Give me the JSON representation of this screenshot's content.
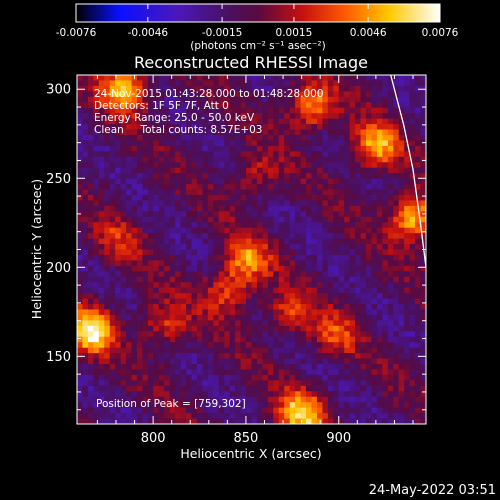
{
  "colorbar": {
    "ticks": [
      "-0.0076",
      "-0.0046",
      "-0.0015",
      "0.0015",
      "0.0046",
      "0.0076"
    ],
    "units": "(photons cm⁻² s⁻¹ asec⁻²)",
    "range": [
      -0.0076,
      0.0076
    ]
  },
  "chart_data": {
    "type": "heatmap",
    "title": "Reconstructed RHESSI Image",
    "xlabel": "Heliocentric X (arcsec)",
    "ylabel": "Heliocentric Y (arcsec)",
    "xlim": [
      759,
      947
    ],
    "ylim": [
      112,
      308
    ],
    "x_ticks": [
      800,
      850,
      900
    ],
    "y_ticks": [
      150,
      200,
      250,
      300
    ],
    "x_tick_labels": [
      "800",
      "850",
      "900"
    ],
    "y_tick_labels": [
      "150",
      "200",
      "250",
      "300"
    ],
    "colormap": "blue-purple-red-yellow-white",
    "annotations": [
      "24-Nov-2015 01:43:28.000 to 01:48:28.000",
      "Detectors: 1F 5F 7F, Att 0",
      "Energy Range: 25.0 - 50.0 keV",
      "Clean     Total counts: 8.57E+03"
    ],
    "peak_label": "Position of Peak = [759,302]",
    "peak_position": [
      759,
      302
    ],
    "sources": [
      {
        "x": 850,
        "y": 204,
        "amplitude": 0.005
      },
      {
        "x": 840,
        "y": 186,
        "amplitude": 0.004
      },
      {
        "x": 806,
        "y": 168,
        "amplitude": 0.0038
      },
      {
        "x": 873,
        "y": 174,
        "amplitude": 0.0036
      },
      {
        "x": 898,
        "y": 162,
        "amplitude": 0.0034
      },
      {
        "x": 766,
        "y": 164,
        "amplitude": 0.0076
      },
      {
        "x": 785,
        "y": 300,
        "amplitude": 0.0068
      },
      {
        "x": 885,
        "y": 290,
        "amplitude": 0.0058
      },
      {
        "x": 920,
        "y": 268,
        "amplitude": 0.006
      },
      {
        "x": 940,
        "y": 228,
        "amplitude": 0.007
      },
      {
        "x": 880,
        "y": 118,
        "amplitude": 0.0066
      },
      {
        "x": 855,
        "y": 252,
        "amplitude": 0.003
      },
      {
        "x": 780,
        "y": 215,
        "amplitude": 0.0026
      }
    ],
    "limb_curve": {
      "x": [
        928,
        935,
        940,
        944,
        947
      ],
      "y": [
        308,
        280,
        255,
        225,
        200
      ]
    }
  },
  "timestamp": "24-May-2022 03:51"
}
